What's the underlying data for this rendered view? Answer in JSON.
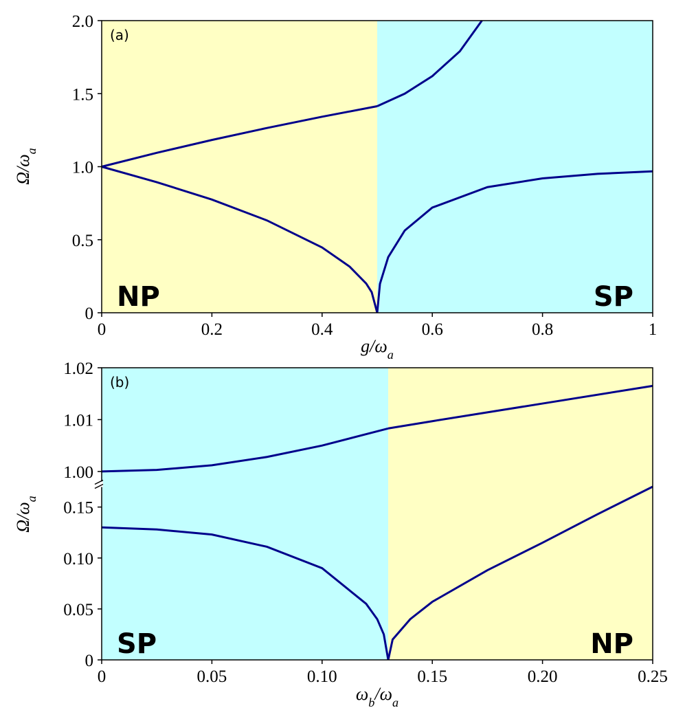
{
  "chart_data": [
    {
      "type": "line",
      "panel_label": "(a)",
      "x_label": "g/ω_a",
      "y_label": "Ω/ω_a",
      "xlim": [
        0,
        1
      ],
      "xticks": [
        0,
        0.2,
        0.4,
        0.6,
        0.8,
        1
      ],
      "ylim": [
        0,
        2
      ],
      "yticks": [
        0,
        0.5,
        {
          "value": 1,
          "label": "1.0"
        },
        1.5,
        {
          "value": 2,
          "label": "2.0"
        }
      ],
      "regions": [
        {
          "x": [
            0,
            0.5
          ],
          "color": "#ffffc4",
          "label": "NP"
        },
        {
          "x": [
            0.5,
            1
          ],
          "color": "#c2ffff",
          "label": "SP"
        }
      ],
      "series": [
        {
          "color": "#00008b",
          "x": [
            0,
            0.1,
            0.2,
            0.3,
            0.4,
            0.5
          ],
          "values": [
            1,
            1.095,
            1.183,
            1.265,
            1.342,
            1.414
          ]
        },
        {
          "color": "#00008b",
          "x": [
            0,
            0.1,
            0.2,
            0.3,
            0.4,
            0.45,
            0.48,
            0.49,
            0.5
          ],
          "values": [
            1,
            0.894,
            0.775,
            0.632,
            0.447,
            0.316,
            0.2,
            0.141,
            0
          ]
        },
        {
          "color": "#00008b",
          "x": [
            0.5,
            0.55,
            0.6,
            0.65,
            0.69
          ],
          "values": [
            1.414,
            1.5,
            1.62,
            1.79,
            2.0
          ]
        },
        {
          "color": "#00008b",
          "x": [
            0.5,
            0.505,
            0.52,
            0.55,
            0.6,
            0.7,
            0.8,
            0.9,
            1
          ],
          "values": [
            0,
            0.198,
            0.381,
            0.563,
            0.72,
            0.86,
            0.92,
            0.951,
            0.968
          ]
        }
      ]
    },
    {
      "type": "line",
      "panel_label": "(b)",
      "x_label": "ω_b/ω_a",
      "y_label": "Ω/ω_a",
      "xlim": [
        0,
        0.25
      ],
      "xticks": [
        0,
        0.05,
        {
          "value": 0.1,
          "label": "0.10"
        },
        0.15,
        {
          "value": 0.2,
          "label": "0.20"
        },
        0.25
      ],
      "ylim": [
        0,
        0.17
      ],
      "yticks": [
        0,
        0.05,
        {
          "value": 0.1,
          "label": "0.10"
        },
        0.15
      ],
      "y2lim": [
        0.998,
        1.02
      ],
      "y2ticks": [
        {
          "value": 1,
          "label": "1.00"
        },
        1.01,
        1.02
      ],
      "regions": [
        {
          "x": [
            0,
            0.13
          ],
          "color": "#c2ffff",
          "label": "SP"
        },
        {
          "x": [
            0.13,
            0.25
          ],
          "color": "#ffffc4",
          "label": "NP"
        }
      ],
      "series": [
        {
          "color": "#00008b",
          "axis": "y2",
          "x": [
            0,
            0.025,
            0.05,
            0.075,
            0.1,
            0.13
          ],
          "values": [
            1.0,
            1.0003,
            1.0012,
            1.0028,
            1.005,
            1.0083
          ]
        },
        {
          "color": "#00008b",
          "axis": "y2",
          "x": [
            0.13,
            0.15,
            0.2,
            0.25
          ],
          "values": [
            1.0083,
            1.0097,
            1.0131,
            1.0165
          ]
        },
        {
          "color": "#00008b",
          "x": [
            0,
            0.025,
            0.05,
            0.075,
            0.1,
            0.12,
            0.125,
            0.128,
            0.13
          ],
          "values": [
            0.13,
            0.128,
            0.123,
            0.111,
            0.09,
            0.055,
            0.04,
            0.025,
            0
          ]
        },
        {
          "color": "#00008b",
          "x": [
            0.13,
            0.132,
            0.14,
            0.15,
            0.175,
            0.2,
            0.225,
            0.25
          ],
          "values": [
            0,
            0.02,
            0.04,
            0.057,
            0.088,
            0.115,
            0.143,
            0.17
          ]
        }
      ]
    }
  ]
}
